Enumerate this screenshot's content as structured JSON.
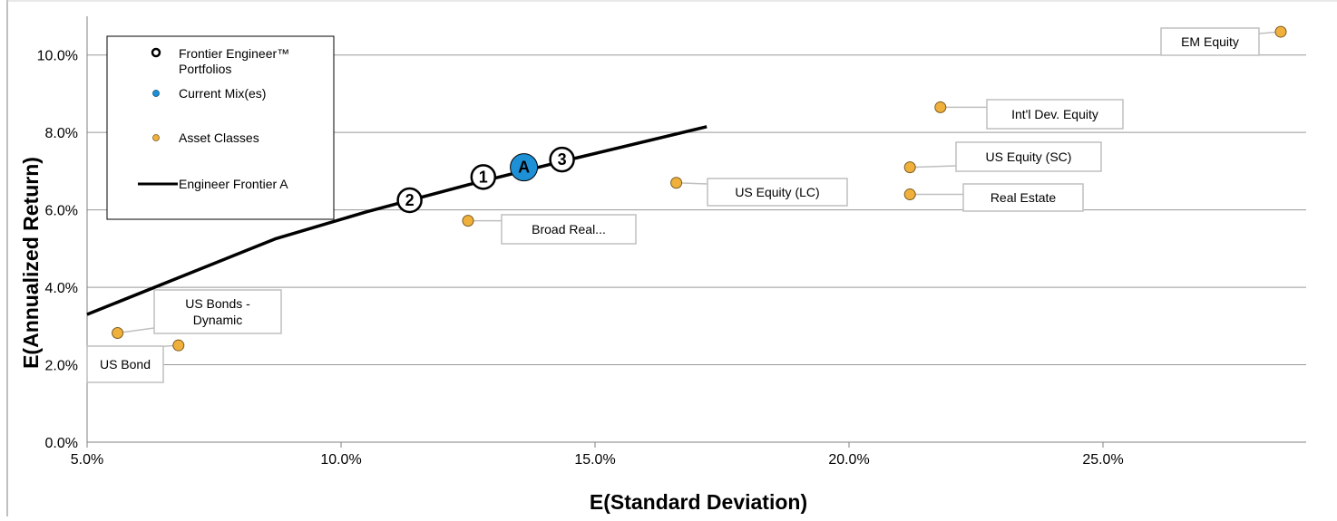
{
  "chart_data": {
    "type": "scatter",
    "xlabel": "E(Standard Deviation)",
    "ylabel": "E(Annualized Return)",
    "xlim": [
      0.05,
      0.29
    ],
    "ylim": [
      0.0,
      0.11
    ],
    "x_ticks": [
      {
        "value": 0.05,
        "label": "5.0%"
      },
      {
        "value": 0.1,
        "label": "10.0%"
      },
      {
        "value": 0.15,
        "label": "15.0%"
      },
      {
        "value": 0.2,
        "label": "20.0%"
      },
      {
        "value": 0.25,
        "label": "25.0%"
      }
    ],
    "y_ticks": [
      {
        "value": 0.0,
        "label": "0.0%"
      },
      {
        "value": 0.02,
        "label": "2.0%"
      },
      {
        "value": 0.04,
        "label": "4.0%"
      },
      {
        "value": 0.06,
        "label": "6.0%"
      },
      {
        "value": 0.08,
        "label": "8.0%"
      },
      {
        "value": 0.1,
        "label": "10.0%"
      }
    ],
    "grid": "horizontal",
    "legend_position": "top-left",
    "legend": [
      {
        "name": "Frontier Engineer™ Portfolios",
        "line1": "Frontier Engineer™",
        "line2": "Portfolios",
        "marker": "open-circle"
      },
      {
        "name": "Current Mix(es)",
        "line1": "Current Mix(es)",
        "line2": "",
        "marker": "blue-dot"
      },
      {
        "name": "Asset Classes",
        "line1": "Asset Classes",
        "line2": "",
        "marker": "orange-dot"
      },
      {
        "name": "Engineer Frontier A",
        "line1": "Engineer Frontier A",
        "line2": "",
        "marker": "line"
      }
    ],
    "frontier": {
      "name": "Engineer Frontier A",
      "x": [
        0.05,
        0.069,
        0.087,
        0.105,
        0.125,
        0.145,
        0.172
      ],
      "y": [
        0.033,
        0.043,
        0.0525,
        0.0595,
        0.0665,
        0.073,
        0.0815
      ]
    },
    "portfolios": [
      {
        "label": "1",
        "x": 0.128,
        "y": 0.0685
      },
      {
        "label": "2",
        "x": 0.1135,
        "y": 0.0625
      },
      {
        "label": "3",
        "x": 0.1435,
        "y": 0.073
      }
    ],
    "current_mix": {
      "label": "A",
      "x": 0.136,
      "y": 0.071
    },
    "asset_classes": [
      {
        "name": "US Bond",
        "x": 0.068,
        "y": 0.025
      },
      {
        "name": "US Bonds - Dynamic",
        "line1": "US Bonds -",
        "line2": "Dynamic",
        "x": 0.056,
        "y": 0.0282
      },
      {
        "name": "Broad Real...",
        "x": 0.125,
        "y": 0.0572
      },
      {
        "name": "US Equity (LC)",
        "x": 0.166,
        "y": 0.067
      },
      {
        "name": "Real Estate",
        "x": 0.212,
        "y": 0.064
      },
      {
        "name": "US Equity (SC)",
        "x": 0.212,
        "y": 0.071
      },
      {
        "name": "Int'l Dev. Equity",
        "x": 0.218,
        "y": 0.0865
      },
      {
        "name": "EM Equity",
        "x": 0.285,
        "y": 0.106
      }
    ]
  },
  "colors": {
    "asset_fill": "#F0B13C",
    "asset_stroke": "#7a5a20",
    "current_fill": "#1E90D6",
    "frontier_line": "#000000",
    "grid": "#999999",
    "callout_border": "#bfbfbf"
  }
}
